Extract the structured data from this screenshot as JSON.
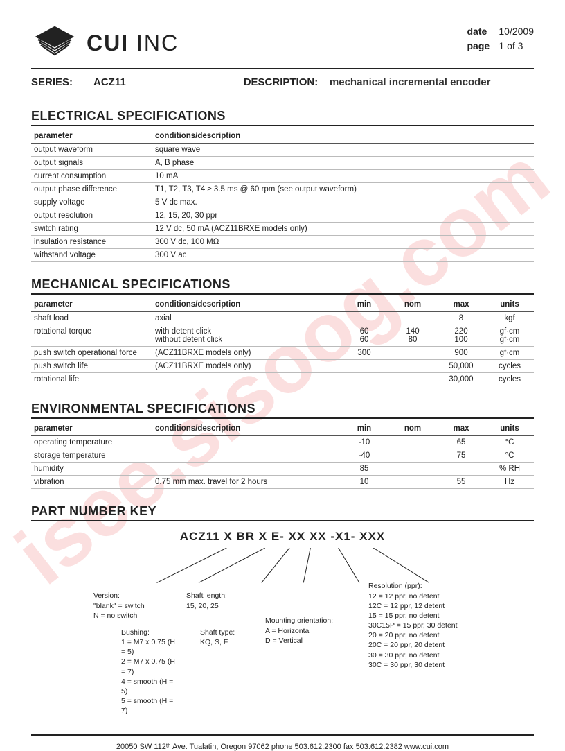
{
  "watermark": "isee.sisoog.com",
  "header": {
    "company_bold": "CUI",
    "company_light": " INC",
    "date_label": "date",
    "date_value": "10/2009",
    "page_label": "page",
    "page_value": "1 of 3"
  },
  "series": {
    "series_label": "SERIES:",
    "series_value": "ACZ11",
    "desc_label": "DESCRIPTION:",
    "desc_value": "mechanical incremental encoder"
  },
  "electrical": {
    "title": "ELECTRICAL SPECIFICATIONS",
    "head_param": "parameter",
    "head_cond": "conditions/description",
    "rows": [
      {
        "p": "output waveform",
        "c": "square wave"
      },
      {
        "p": "output signals",
        "c": "A, B phase"
      },
      {
        "p": "current consumption",
        "c": "10 mA"
      },
      {
        "p": "output phase difference",
        "c": "T1, T2, T3, T4 ≥ 3.5 ms @ 60 rpm (see output waveform)"
      },
      {
        "p": "supply voltage",
        "c": "5 V dc max."
      },
      {
        "p": "output resolution",
        "c": "12, 15, 20, 30 ppr"
      },
      {
        "p": "switch rating",
        "c": "12 V dc, 50 mA (ACZ11BRXE models only)"
      },
      {
        "p": "insulation resistance",
        "c": "300 V dc, 100 MΩ"
      },
      {
        "p": "withstand voltage",
        "c": "300 V ac"
      }
    ]
  },
  "mechanical": {
    "title": "MECHANICAL SPECIFICATIONS",
    "head_param": "parameter",
    "head_cond": "conditions/description",
    "head_min": "min",
    "head_nom": "nom",
    "head_max": "max",
    "head_units": "units",
    "rows": [
      {
        "p": "shaft load",
        "c": "axial",
        "min": "",
        "nom": "",
        "max": "8",
        "u": "kgf"
      },
      {
        "p": "rotational torque",
        "c": "with detent click\nwithout detent click",
        "min": "60\n60",
        "nom": "140\n80",
        "max": "220\n100",
        "u": "gf·cm\ngf·cm"
      },
      {
        "p": "push switch operational force",
        "c": "(ACZ11BRXE models only)",
        "min": "300",
        "nom": "",
        "max": "900",
        "u": "gf·cm"
      },
      {
        "p": "push switch life",
        "c": "(ACZ11BRXE models only)",
        "min": "",
        "nom": "",
        "max": "50,000",
        "u": "cycles"
      },
      {
        "p": "rotational life",
        "c": "",
        "min": "",
        "nom": "",
        "max": "30,000",
        "u": "cycles"
      }
    ]
  },
  "environmental": {
    "title": "ENVIRONMENTAL SPECIFICATIONS",
    "head_param": "parameter",
    "head_cond": "conditions/description",
    "head_min": "min",
    "head_nom": "nom",
    "head_max": "max",
    "head_units": "units",
    "rows": [
      {
        "p": "operating temperature",
        "c": "",
        "min": "-10",
        "nom": "",
        "max": "65",
        "u": "°C"
      },
      {
        "p": "storage temperature",
        "c": "",
        "min": "-40",
        "nom": "",
        "max": "75",
        "u": "°C"
      },
      {
        "p": "humidity",
        "c": "",
        "min": "85",
        "nom": "",
        "max": "",
        "u": "% RH"
      },
      {
        "p": "vibration",
        "c": "0.75 mm max. travel for 2 hours",
        "min": "10",
        "nom": "",
        "max": "55",
        "u": "Hz"
      }
    ]
  },
  "pnk": {
    "title": "PART NUMBER KEY",
    "pattern": "ACZ11 X BR X E- XX XX -X1- XXX",
    "version_t": "Version:",
    "version_l1": "\"blank\" = switch",
    "version_l2": "N = no switch",
    "bushing_t": "Bushing:",
    "bushing_l1": "1 = M7 x 0.75 (H = 5)",
    "bushing_l2": "2 = M7 x 0.75 (H = 7)",
    "bushing_l3": "4 = smooth (H = 5)",
    "bushing_l4": "5 = smooth (H = 7)",
    "shaftlen_t": "Shaft length:",
    "shaftlen_l1": "15, 20, 25",
    "shafttype_t": "Shaft type:",
    "shafttype_l1": "KQ, S, F",
    "mount_t": "Mounting orientation:",
    "mount_l1": "A = Horizontal",
    "mount_l2": "D = Vertical",
    "res_t": "Resolution (ppr):",
    "res_l1": "12 = 12 ppr, no detent",
    "res_l2": "12C = 12 ppr, 12 detent",
    "res_l3": "15 = 15 ppr, no detent",
    "res_l4": "30C15P = 15 ppr, 30 detent",
    "res_l5": "20 = 20 ppr, no detent",
    "res_l6": "20C = 20 ppr, 20 detent",
    "res_l7": "30 = 30 ppr, no detent",
    "res_l8": "30C = 30 ppr, 30 detent"
  },
  "footer": {
    "text": "20050 SW 112ᵗʰ Ave. Tualatin, Oregon 97062    phone 503.612.2300    fax 503.612.2382    www.cui.com"
  }
}
